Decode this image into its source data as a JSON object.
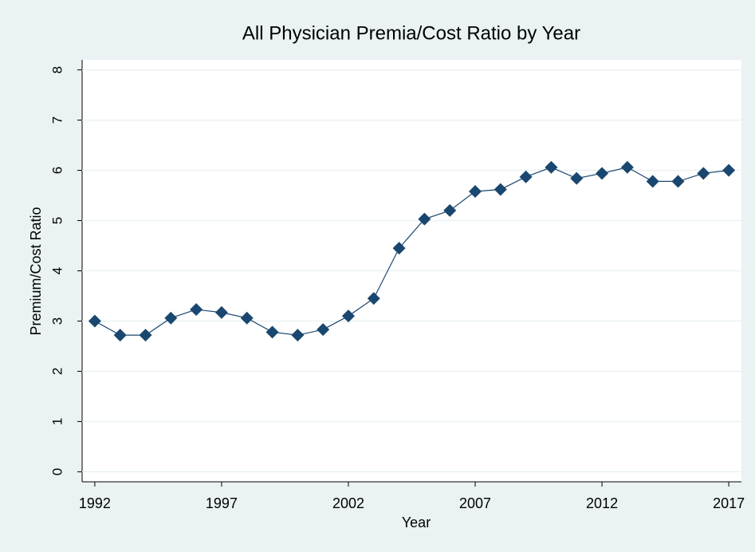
{
  "chart_data": {
    "type": "line",
    "title": "All Physician Premia/Cost Ratio by Year",
    "x_label": "Year",
    "y_label": "Premium/Cost Ratio",
    "x": [
      1992,
      1993,
      1994,
      1995,
      1996,
      1997,
      1998,
      1999,
      2000,
      2001,
      2002,
      2003,
      2004,
      2005,
      2006,
      2007,
      2008,
      2009,
      2010,
      2011,
      2012,
      2013,
      2014,
      2015,
      2016,
      2017
    ],
    "series": [
      {
        "name": "Premium/Cost Ratio",
        "color": "#1a476f",
        "values": [
          3.0,
          2.72,
          2.72,
          3.06,
          3.23,
          3.17,
          3.06,
          2.78,
          2.72,
          2.83,
          3.1,
          3.45,
          4.45,
          5.03,
          5.2,
          5.58,
          5.62,
          5.87,
          6.06,
          5.84,
          5.94,
          6.06,
          5.78,
          5.78,
          5.94,
          6.0
        ]
      }
    ],
    "xlim": [
      1991.5,
      2017.5
    ],
    "xticks": [
      1992,
      1997,
      2002,
      2007,
      2012,
      2017
    ],
    "ylim": [
      -0.2,
      8.2
    ],
    "yticks": [
      0,
      1,
      2,
      3,
      4,
      5,
      6,
      7,
      8
    ],
    "grid": true
  }
}
